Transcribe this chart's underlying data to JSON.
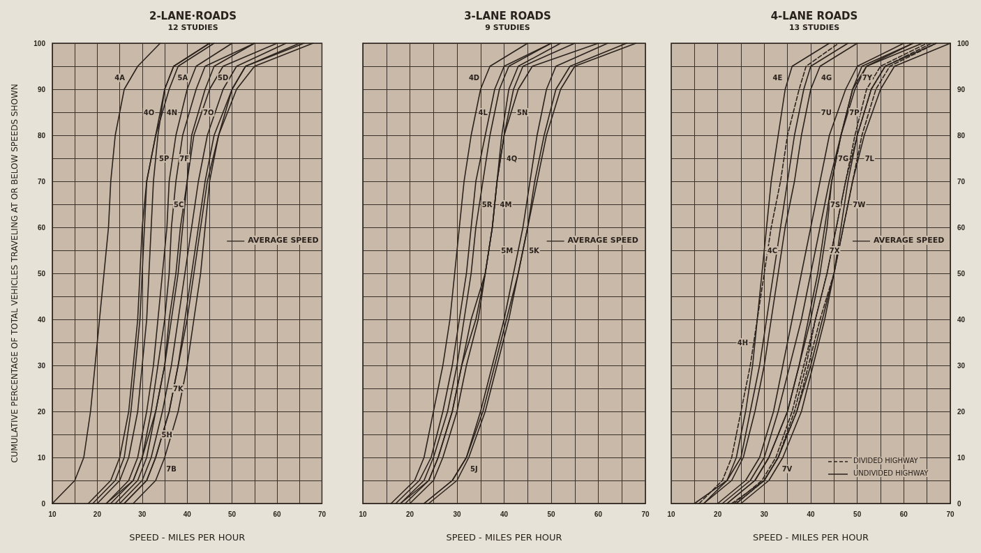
{
  "chart_data": [
    {
      "type": "line",
      "title": "2-LANE·ROADS",
      "subtitle": "12 STUDIES",
      "xlabel": "SPEED - MILES PER HOUR",
      "ylabel": "CUMULATIVE PERCENTAGE OF TOTAL VEHICLES TRAVELING AT OR BELOW SPEEDS SHOWN",
      "xlim": [
        10,
        70
      ],
      "ylim": [
        0,
        100
      ],
      "xticks": [
        10,
        {
          "value": 15,
          "label": null
        },
        20,
        {
          "value": 25,
          "label": null
        },
        30,
        {
          "value": 35,
          "label": null
        },
        40,
        {
          "value": 45,
          "label": null
        },
        50,
        {
          "value": 55,
          "label": null
        },
        60,
        {
          "value": 65,
          "label": null
        },
        70
      ],
      "yticks": [
        0,
        {
          "value": 5,
          "label": null
        },
        10,
        {
          "value": 15,
          "label": null
        },
        20,
        {
          "value": 25,
          "label": null
        },
        30,
        {
          "value": 35,
          "label": null
        },
        40,
        {
          "value": 45,
          "label": null
        },
        50,
        {
          "value": 55,
          "label": null
        },
        60,
        {
          "value": 65,
          "label": null
        },
        70,
        {
          "value": 75,
          "label": null
        },
        80,
        {
          "value": 85,
          "label": null
        },
        90,
        {
          "value": 95,
          "label": null
        },
        100
      ],
      "grid": true,
      "legend": false,
      "marker": "none",
      "line_style": "solid",
      "annotations": [
        "AVERAGE SPEED"
      ],
      "series": [
        {
          "name": "4A",
          "color": "#2a221d",
          "x": [
            10,
            15,
            17,
            18.5,
            19.5,
            20.5,
            21.5,
            22.5,
            23,
            24,
            26,
            29,
            34
          ],
          "values": [
            0,
            5,
            10,
            20,
            30,
            40,
            50,
            60,
            70,
            80,
            90,
            95,
            100
          ]
        },
        {
          "name": "4O",
          "color": "#2a221d",
          "x": [
            18,
            23,
            25,
            27,
            28,
            29,
            29.5,
            30,
            31,
            33,
            35,
            37,
            45
          ],
          "values": [
            0,
            5,
            10,
            20,
            30,
            40,
            50,
            60,
            70,
            80,
            90,
            95,
            100
          ]
        },
        {
          "name": "4N",
          "color": "#2a221d",
          "x": [
            19,
            24,
            26,
            27.5,
            28.5,
            29.5,
            30,
            30.5,
            31,
            33,
            36,
            38,
            46
          ],
          "values": [
            0,
            5,
            10,
            20,
            30,
            40,
            50,
            60,
            70,
            80,
            90,
            95,
            100
          ]
        },
        {
          "name": "5P",
          "color": "#2a221d",
          "x": [
            20,
            25,
            27,
            29,
            30,
            31,
            31.5,
            32,
            32.5,
            33.5,
            35,
            37,
            45
          ],
          "values": [
            0,
            5,
            10,
            20,
            30,
            40,
            50,
            60,
            70,
            80,
            90,
            95,
            100
          ]
        },
        {
          "name": "5C",
          "color": "#2a221d",
          "x": [
            22,
            28,
            30,
            33,
            35,
            36,
            37.5,
            38.5,
            40,
            41,
            44,
            46,
            55
          ],
          "values": [
            0,
            5,
            10,
            20,
            30,
            40,
            50,
            60,
            70,
            80,
            90,
            95,
            100
          ]
        },
        {
          "name": "7O",
          "color": "#2a221d",
          "x": [
            24,
            29,
            31,
            33,
            35,
            36.5,
            38,
            39,
            40,
            41.5,
            45,
            48,
            60
          ],
          "values": [
            0,
            5,
            10,
            20,
            30,
            40,
            50,
            60,
            70,
            80,
            90,
            95,
            100
          ]
        },
        {
          "name": "5A",
          "color": "#2a221d",
          "x": [
            22,
            27,
            29,
            31,
            32.5,
            33.5,
            34.5,
            35.5,
            36,
            37.5,
            40,
            42,
            50
          ],
          "values": [
            0,
            5,
            10,
            20,
            30,
            40,
            50,
            60,
            70,
            80,
            90,
            95,
            100
          ]
        },
        {
          "name": "7F",
          "color": "#2a221d",
          "x": [
            23,
            28,
            30,
            32,
            33.5,
            35,
            36,
            36.5,
            37.5,
            39,
            42,
            44,
            55
          ],
          "values": [
            0,
            5,
            10,
            20,
            30,
            40,
            50,
            60,
            70,
            80,
            90,
            95,
            100
          ]
        },
        {
          "name": "5D",
          "color": "#2a221d",
          "x": [
            25,
            30,
            32,
            34.5,
            36.5,
            38,
            39.5,
            41,
            42.5,
            44.5,
            48,
            51,
            62
          ],
          "values": [
            0,
            5,
            10,
            20,
            30,
            40,
            50,
            60,
            70,
            80,
            90,
            95,
            100
          ]
        },
        {
          "name": "7K",
          "color": "#2a221d",
          "x": [
            26,
            31,
            33,
            36,
            38,
            40,
            41.5,
            43,
            44.5,
            47,
            50,
            53,
            65
          ],
          "values": [
            0,
            5,
            10,
            20,
            30,
            40,
            50,
            60,
            70,
            80,
            90,
            95,
            100
          ]
        },
        {
          "name": "7B",
          "color": "#2a221d",
          "x": [
            28,
            33,
            35,
            38,
            40,
            41.5,
            43,
            44,
            45,
            47,
            51,
            55,
            68
          ],
          "values": [
            0,
            5,
            10,
            20,
            30,
            40,
            50,
            60,
            70,
            80,
            90,
            95,
            100
          ]
        },
        {
          "name": "5H",
          "color": "#2a221d",
          "x": [
            26,
            31,
            33,
            36,
            38,
            39.5,
            41,
            42.5,
            44,
            46,
            50,
            53,
            66
          ],
          "values": [
            0,
            5,
            10,
            20,
            30,
            40,
            50,
            60,
            70,
            80,
            90,
            95,
            100
          ]
        }
      ]
    },
    {
      "type": "line",
      "title": "3-LANE ROADS",
      "subtitle": "9 STUDIES",
      "xlabel": "SPEED - MILES PER HOUR",
      "xlim": [
        10,
        70
      ],
      "ylim": [
        0,
        100
      ],
      "tick_labels": "x",
      "xticks": [
        10,
        {
          "value": 15,
          "label": null
        },
        20,
        {
          "value": 25,
          "label": null
        },
        30,
        {
          "value": 35,
          "label": null
        },
        40,
        {
          "value": 45,
          "label": null
        },
        50,
        {
          "value": 55,
          "label": null
        },
        60,
        {
          "value": 65,
          "label": null
        },
        70
      ],
      "yticks": [
        0,
        {
          "value": 5,
          "label": null
        },
        10,
        {
          "value": 15,
          "label": null
        },
        20,
        {
          "value": 25,
          "label": null
        },
        30,
        {
          "value": 35,
          "label": null
        },
        40,
        {
          "value": 45,
          "label": null
        },
        50,
        {
          "value": 55,
          "label": null
        },
        60,
        {
          "value": 65,
          "label": null
        },
        70,
        {
          "value": 75,
          "label": null
        },
        80,
        {
          "value": 85,
          "label": null
        },
        90,
        {
          "value": 95,
          "label": null
        },
        100
      ],
      "grid": true,
      "legend": false,
      "marker": "none",
      "line_style": "solid",
      "annotations": [
        "AVERAGE SPEED"
      ],
      "series": [
        {
          "name": "4D",
          "color": "#2a221d",
          "x": [
            16,
            21,
            23,
            25,
            27,
            28.5,
            29.5,
            30.5,
            31.5,
            33,
            35,
            37,
            45
          ],
          "values": [
            0,
            5,
            10,
            20,
            30,
            40,
            50,
            60,
            70,
            80,
            90,
            95,
            100
          ]
        },
        {
          "name": "4L",
          "color": "#2a221d",
          "x": [
            17,
            22,
            24.5,
            27,
            29,
            30.5,
            32,
            33,
            34,
            36,
            38,
            40,
            50
          ],
          "values": [
            0,
            5,
            10,
            20,
            30,
            40,
            50,
            60,
            70,
            80,
            90,
            95,
            100
          ]
        },
        {
          "name": "5R",
          "color": "#2a221d",
          "x": [
            18,
            23,
            25,
            28,
            30,
            31.5,
            33,
            34,
            35.5,
            37,
            39,
            41,
            50
          ],
          "values": [
            0,
            5,
            10,
            20,
            30,
            40,
            50,
            60,
            70,
            80,
            90,
            95,
            100
          ]
        },
        {
          "name": "4M",
          "color": "#2a221d",
          "x": [
            19,
            24,
            26,
            29,
            31,
            33,
            36,
            37.5,
            38.5,
            39.5,
            41,
            43,
            52
          ],
          "values": [
            0,
            5,
            10,
            20,
            30,
            40,
            50,
            60,
            70,
            80,
            90,
            95,
            100
          ]
        },
        {
          "name": "4Q",
          "color": "#2a221d",
          "x": [
            18,
            24,
            26,
            29,
            31,
            34,
            36,
            37.5,
            38.5,
            40,
            42,
            44,
            55
          ],
          "values": [
            0,
            5,
            10,
            20,
            30,
            40,
            50,
            60,
            70,
            80,
            90,
            95,
            100
          ]
        },
        {
          "name": "5N",
          "color": "#2a221d",
          "x": [
            20,
            25,
            27,
            30,
            32,
            34.5,
            36,
            37.5,
            38.5,
            40,
            43,
            46,
            60
          ],
          "values": [
            0,
            5,
            10,
            20,
            30,
            40,
            50,
            60,
            70,
            80,
            90,
            95,
            100
          ]
        },
        {
          "name": "5M",
          "color": "#2a221d",
          "x": [
            23,
            29,
            32,
            35,
            37.5,
            40,
            42,
            44,
            45.5,
            47,
            49,
            51,
            62
          ],
          "values": [
            0,
            5,
            10,
            20,
            30,
            40,
            50,
            60,
            70,
            80,
            90,
            95,
            100
          ]
        },
        {
          "name": "5J",
          "color": "#2a221d",
          "x": [
            24,
            30,
            32.5,
            36,
            38.5,
            41,
            43,
            45,
            47,
            49,
            52,
            55,
            68
          ],
          "values": [
            0,
            5,
            10,
            20,
            30,
            40,
            50,
            60,
            70,
            80,
            90,
            95,
            100
          ]
        },
        {
          "name": "5K",
          "color": "#2a221d",
          "x": [
            23,
            29,
            32,
            35.5,
            38,
            40.5,
            43,
            45,
            46.5,
            48.5,
            51,
            54,
            66
          ],
          "values": [
            0,
            5,
            10,
            20,
            30,
            40,
            50,
            60,
            70,
            80,
            90,
            95,
            100
          ]
        }
      ]
    },
    {
      "type": "line",
      "title": "4-LANE ROADS",
      "subtitle": "13 STUDIES",
      "xlabel": "SPEED - MILES PER HOUR",
      "xlim": [
        10,
        70
      ],
      "ylim": [
        0,
        100
      ],
      "xticks": [
        10,
        {
          "value": 15,
          "label": null
        },
        20,
        {
          "value": 25,
          "label": null
        },
        30,
        {
          "value": 35,
          "label": null
        },
        40,
        {
          "value": 45,
          "label": null
        },
        50,
        {
          "value": 55,
          "label": null
        },
        60,
        {
          "value": 65,
          "label": null
        },
        70
      ],
      "yticks": [
        0,
        {
          "value": 5,
          "label": null
        },
        10,
        {
          "value": 15,
          "label": null
        },
        20,
        {
          "value": 25,
          "label": null
        },
        30,
        {
          "value": 35,
          "label": null
        },
        40,
        {
          "value": 45,
          "label": null
        },
        50,
        {
          "value": 55,
          "label": null
        },
        60,
        {
          "value": 65,
          "label": null
        },
        70,
        {
          "value": 75,
          "label": null
        },
        80,
        {
          "value": 85,
          "label": null
        },
        90,
        {
          "value": 95,
          "label": null
        },
        100
      ],
      "grid": true,
      "legend": false,
      "marker": "none",
      "line_style": "solid",
      "annotations": [
        "AVERAGE SPEED",
        "DIVIDED HIGHWAY",
        "UNDIVIDED HIGHWAY"
      ],
      "series": [
        {
          "name": "4E",
          "color": "#2a221d",
          "x": [
            15,
            22,
            24,
            26,
            27.5,
            28.5,
            29.5,
            30.5,
            31.5,
            33,
            34.5,
            36,
            44
          ],
          "values": [
            0,
            5,
            10,
            20,
            30,
            40,
            50,
            60,
            70,
            80,
            90,
            95,
            100
          ]
        },
        {
          "name": "4H",
          "color": "#2a221d",
          "line_style": "dashed",
          "x": [
            16,
            21,
            23,
            25,
            27,
            28.5,
            30,
            31.5,
            33.5,
            35,
            37.5,
            39,
            46
          ],
          "values": [
            0,
            5,
            10,
            20,
            30,
            40,
            50,
            60,
            70,
            80,
            90,
            95,
            100
          ]
        },
        {
          "name": "4C",
          "color": "#2a221d",
          "x": [
            17,
            22,
            25,
            27,
            29,
            30.5,
            32,
            33.5,
            35,
            36.5,
            38.5,
            40,
            48
          ],
          "values": [
            0,
            5,
            10,
            20,
            30,
            40,
            50,
            60,
            70,
            80,
            90,
            95,
            100
          ]
        },
        {
          "name": "4G",
          "color": "#2a221d",
          "x": [
            17,
            23,
            25.5,
            28,
            30,
            31.5,
            33,
            34.5,
            36.5,
            38,
            40,
            42,
            50
          ],
          "values": [
            0,
            5,
            10,
            20,
            30,
            40,
            50,
            60,
            70,
            80,
            90,
            95,
            100
          ]
        },
        {
          "name": "7U",
          "color": "#2a221d",
          "x": [
            20,
            26,
            29,
            32,
            34,
            36,
            38,
            40,
            42,
            44,
            47.5,
            50,
            60
          ],
          "values": [
            0,
            5,
            10,
            20,
            30,
            40,
            50,
            60,
            70,
            80,
            90,
            95,
            100
          ]
        },
        {
          "name": "7P",
          "color": "#2a221d",
          "x": [
            21,
            27,
            30,
            33,
            35.5,
            38,
            40,
            42,
            44,
            46.5,
            49.5,
            52,
            62
          ],
          "values": [
            0,
            5,
            10,
            20,
            30,
            40,
            50,
            60,
            70,
            80,
            90,
            95,
            100
          ]
        },
        {
          "name": "7G",
          "color": "#2a221d",
          "x": [
            22,
            28,
            31,
            35,
            37.5,
            39.5,
            41.5,
            43,
            44.5,
            46.5,
            49,
            51,
            62
          ],
          "values": [
            0,
            5,
            10,
            20,
            30,
            40,
            50,
            60,
            70,
            80,
            90,
            95,
            100
          ]
        },
        {
          "name": "7S",
          "color": "#2a221d",
          "x": [
            22,
            28,
            31,
            35,
            37.5,
            40,
            42,
            43.5,
            44.5,
            46.5,
            49,
            52,
            64
          ],
          "values": [
            0,
            5,
            10,
            20,
            30,
            40,
            50,
            60,
            70,
            80,
            90,
            95,
            100
          ]
        },
        {
          "name": "7X",
          "color": "#2a221d",
          "line_style": "dashed",
          "x": [
            23,
            30,
            33,
            36.5,
            39,
            41,
            43.5,
            45.5,
            47.5,
            50,
            53,
            56,
            66
          ],
          "values": [
            0,
            5,
            10,
            20,
            30,
            40,
            50,
            60,
            70,
            80,
            90,
            95,
            100
          ]
        },
        {
          "name": "7Y",
          "color": "#2a221d",
          "line_style": "dashed",
          "x": [
            23.5,
            29.5,
            32.5,
            36,
            38.5,
            41,
            43.5,
            45.5,
            47.5,
            49.5,
            52,
            55,
            65
          ],
          "values": [
            0,
            5,
            10,
            20,
            30,
            40,
            50,
            60,
            70,
            80,
            90,
            95,
            100
          ]
        },
        {
          "name": "7W",
          "color": "#2a221d",
          "line_style": "dashed",
          "x": [
            24,
            30,
            33,
            37,
            39.5,
            42,
            45,
            47,
            49,
            51,
            54,
            57,
            67
          ],
          "values": [
            0,
            5,
            10,
            20,
            30,
            40,
            50,
            60,
            70,
            80,
            90,
            95,
            100
          ]
        },
        {
          "name": "7V",
          "color": "#2a221d",
          "x": [
            25,
            31,
            34,
            38,
            40.5,
            43,
            45,
            46.5,
            48,
            50,
            53,
            56,
            67
          ],
          "values": [
            0,
            5,
            10,
            20,
            30,
            40,
            50,
            60,
            70,
            80,
            90,
            95,
            100
          ]
        },
        {
          "name": "7L",
          "color": "#2a221d",
          "x": [
            24,
            30,
            33,
            37,
            40,
            42.5,
            45,
            47,
            49,
            51.5,
            55,
            58,
            70
          ],
          "values": [
            0,
            5,
            10,
            20,
            30,
            40,
            50,
            60,
            70,
            80,
            90,
            95,
            100
          ]
        }
      ]
    }
  ]
}
